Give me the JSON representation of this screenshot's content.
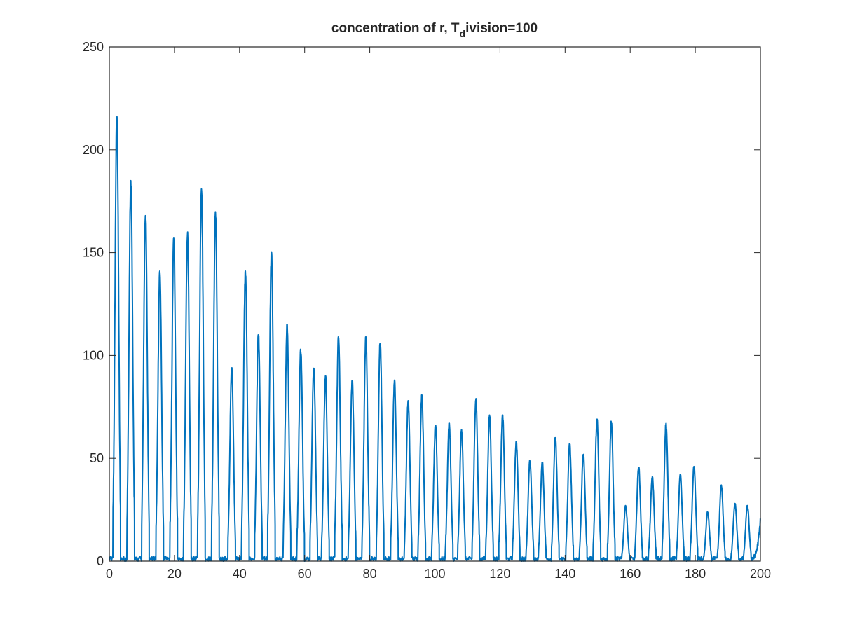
{
  "chart_data": {
    "type": "line",
    "title": {
      "prefix": "concentration of r, T",
      "subscript": "d",
      "suffix": "ivision=100"
    },
    "xlabel": "",
    "ylabel": "",
    "xlim": [
      0,
      200
    ],
    "ylim": [
      0,
      250
    ],
    "xticks": [
      0,
      20,
      40,
      60,
      80,
      100,
      120,
      140,
      160,
      180,
      200
    ],
    "yticks": [
      0,
      50,
      100,
      150,
      200,
      250
    ],
    "x_tick_labels": [
      "0",
      "20",
      "40",
      "60",
      "80",
      "100",
      "120",
      "140",
      "160",
      "180",
      "200"
    ],
    "y_tick_labels": [
      "0",
      "50",
      "100",
      "150",
      "200",
      "250"
    ],
    "grid": false,
    "box": true,
    "line_color": "#0072BD",
    "series": [
      {
        "peaks": [
          [
            2.3,
            216
          ],
          [
            6.6,
            185
          ],
          [
            11.1,
            169
          ],
          [
            15.5,
            141
          ],
          [
            19.8,
            157
          ],
          [
            24.0,
            160
          ],
          [
            28.3,
            183
          ],
          [
            32.6,
            170
          ],
          [
            37.6,
            94
          ],
          [
            41.8,
            141
          ],
          [
            45.8,
            110
          ],
          [
            49.8,
            150
          ],
          [
            54.6,
            115
          ],
          [
            58.8,
            103
          ],
          [
            62.8,
            94
          ],
          [
            66.4,
            90
          ],
          [
            70.4,
            109
          ],
          [
            74.6,
            88
          ],
          [
            78.8,
            109
          ],
          [
            83.2,
            107
          ],
          [
            87.6,
            88
          ],
          [
            91.8,
            78
          ],
          [
            96.0,
            81
          ],
          [
            100.2,
            66
          ],
          [
            104.4,
            67
          ],
          [
            108.2,
            64
          ],
          [
            112.6,
            79
          ],
          [
            116.8,
            71
          ],
          [
            120.8,
            71
          ],
          [
            125.0,
            58
          ],
          [
            129.2,
            49
          ],
          [
            133.0,
            48
          ],
          [
            137.0,
            60
          ],
          [
            141.4,
            57
          ],
          [
            145.6,
            52
          ],
          [
            149.8,
            69
          ],
          [
            154.2,
            68
          ],
          [
            158.6,
            27
          ],
          [
            162.6,
            46
          ],
          [
            166.8,
            41
          ],
          [
            171.0,
            67
          ],
          [
            175.4,
            42
          ],
          [
            179.6,
            46
          ],
          [
            183.8,
            24
          ],
          [
            188.0,
            37
          ],
          [
            192.2,
            28
          ],
          [
            196.0,
            27
          ]
        ],
        "end_value": 19
      }
    ]
  }
}
